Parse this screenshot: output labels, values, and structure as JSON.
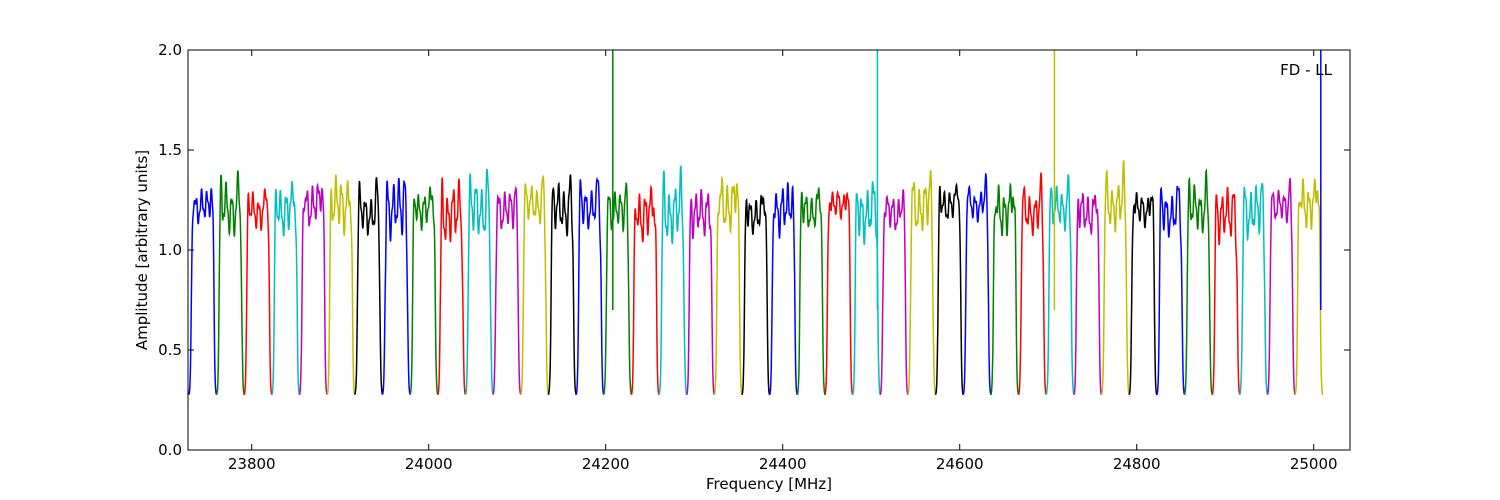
{
  "chart_data": {
    "type": "line",
    "title": "",
    "xlabel": "Frequency [MHz]",
    "ylabel": "Amplitude [arbitrary units]",
    "xlim": [
      23728,
      25041
    ],
    "ylim": [
      0.0,
      2.0
    ],
    "x_ticks": [
      23800,
      24000,
      24200,
      24400,
      24600,
      24800,
      25000
    ],
    "x_tick_labels": [
      "23800",
      "24000",
      "24200",
      "24400",
      "24600",
      "24800",
      "25000"
    ],
    "y_ticks": [
      0.0,
      0.5,
      1.0,
      1.5,
      2.0
    ],
    "y_tick_labels": [
      "0.0",
      "0.5",
      "1.0",
      "1.5",
      "2.0"
    ],
    "grid": false,
    "legend": "none",
    "annotation": "FD - LL",
    "color_cycle": [
      "#0000ff",
      "#008000",
      "#ff0000",
      "#00bfbf",
      "#bf00bf",
      "#bfbf00",
      "#000000"
    ],
    "spw_width_mhz": 31.25,
    "passband_level": 1.2,
    "edge_level": 0.27,
    "n_segments": 41,
    "start_mhz": 23729,
    "spikes": [
      {
        "x": 24208,
        "y": 2.0
      },
      {
        "x": 24507,
        "y": 2.0
      },
      {
        "x": 24707,
        "y": 2.0
      },
      {
        "x": 25008,
        "y": 2.0
      }
    ]
  }
}
